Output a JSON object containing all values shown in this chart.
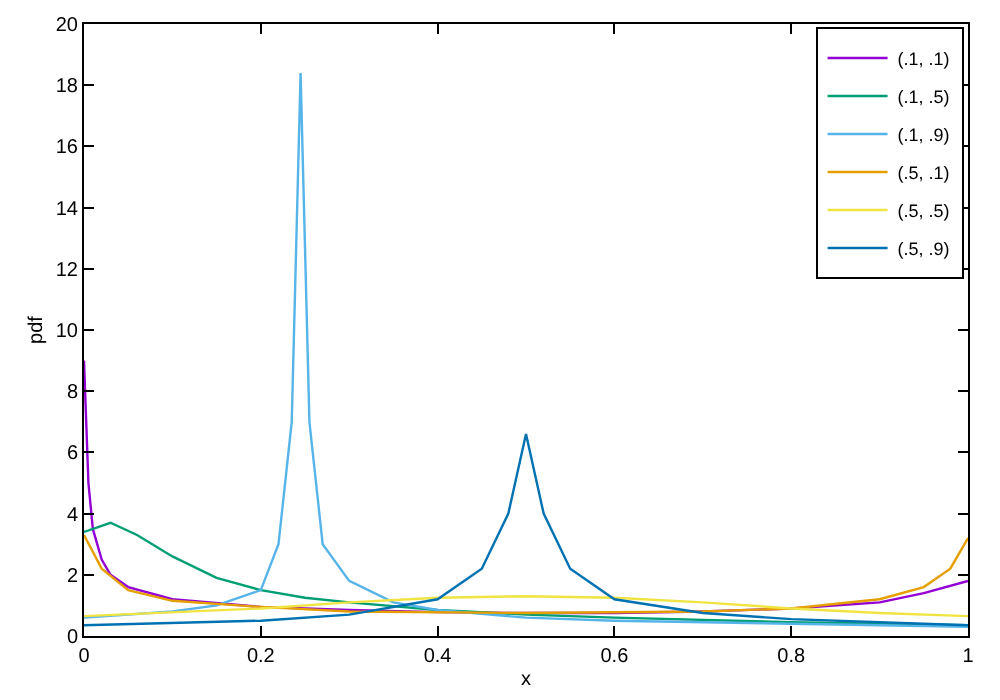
{
  "chart_data": {
    "type": "line",
    "xlabel": "x",
    "ylabel": "pdf",
    "xlim": [
      0,
      1
    ],
    "xticks": [
      0,
      0.2,
      0.4,
      0.6,
      0.8,
      1
    ],
    "ylim": [
      0,
      20
    ],
    "yticks": [
      0,
      2,
      4,
      6,
      8,
      10,
      12,
      14,
      16,
      18,
      20
    ],
    "grid": false,
    "legend": "top right",
    "marker": "none",
    "line_style": "solid",
    "series": [
      {
        "name": "(.1, .1)",
        "color": "#9400d3",
        "x": [
          0,
          0.005,
          0.01,
          0.02,
          0.03,
          0.05,
          0.1,
          0.2,
          0.3,
          0.4,
          0.5,
          0.6,
          0.7,
          0.8,
          0.9,
          0.95,
          1
        ],
        "values": [
          9,
          5,
          3.5,
          2.5,
          2,
          1.6,
          1.2,
          0.95,
          0.85,
          0.78,
          0.75,
          0.75,
          0.8,
          0.9,
          1.1,
          1.4,
          1.8
        ]
      },
      {
        "name": "(.1, .5)",
        "color": "#009e73",
        "x": [
          0,
          0.03,
          0.06,
          0.1,
          0.15,
          0.2,
          0.25,
          0.3,
          0.4,
          0.5,
          0.6,
          0.8,
          1
        ],
        "values": [
          3.4,
          3.7,
          3.3,
          2.6,
          1.9,
          1.5,
          1.25,
          1.1,
          0.85,
          0.7,
          0.6,
          0.45,
          0.35
        ]
      },
      {
        "name": "(.1, .9)",
        "color": "#56b4e9",
        "x": [
          0,
          0.1,
          0.15,
          0.2,
          0.22,
          0.235,
          0.245,
          0.255,
          0.27,
          0.3,
          0.35,
          0.4,
          0.5,
          0.6,
          0.8,
          1
        ],
        "values": [
          0.6,
          0.8,
          1.0,
          1.5,
          3,
          7,
          18.4,
          7,
          3,
          1.8,
          1.1,
          0.85,
          0.6,
          0.5,
          0.4,
          0.3
        ]
      },
      {
        "name": "(.5, .1)",
        "color": "#e69f00",
        "x": [
          0,
          0.02,
          0.05,
          0.1,
          0.2,
          0.3,
          0.5,
          0.7,
          0.8,
          0.9,
          0.95,
          0.98,
          1
        ],
        "values": [
          3.3,
          2.2,
          1.5,
          1.15,
          0.95,
          0.8,
          0.75,
          0.8,
          0.9,
          1.2,
          1.6,
          2.2,
          3.2
        ]
      },
      {
        "name": "(.5, .5)",
        "color": "#f0e442",
        "x": [
          0,
          0.2,
          0.3,
          0.4,
          0.5,
          0.6,
          0.7,
          0.8,
          0.9,
          1
        ],
        "values": [
          0.65,
          0.9,
          1.1,
          1.25,
          1.3,
          1.25,
          1.1,
          0.9,
          0.75,
          0.65
        ]
      },
      {
        "name": "(.5, .9)",
        "color": "#0072b2",
        "x": [
          0,
          0.2,
          0.3,
          0.4,
          0.45,
          0.48,
          0.5,
          0.52,
          0.55,
          0.6,
          0.7,
          0.8,
          1
        ],
        "values": [
          0.35,
          0.5,
          0.7,
          1.2,
          2.2,
          4,
          6.6,
          4,
          2.2,
          1.2,
          0.75,
          0.55,
          0.35
        ]
      }
    ]
  }
}
